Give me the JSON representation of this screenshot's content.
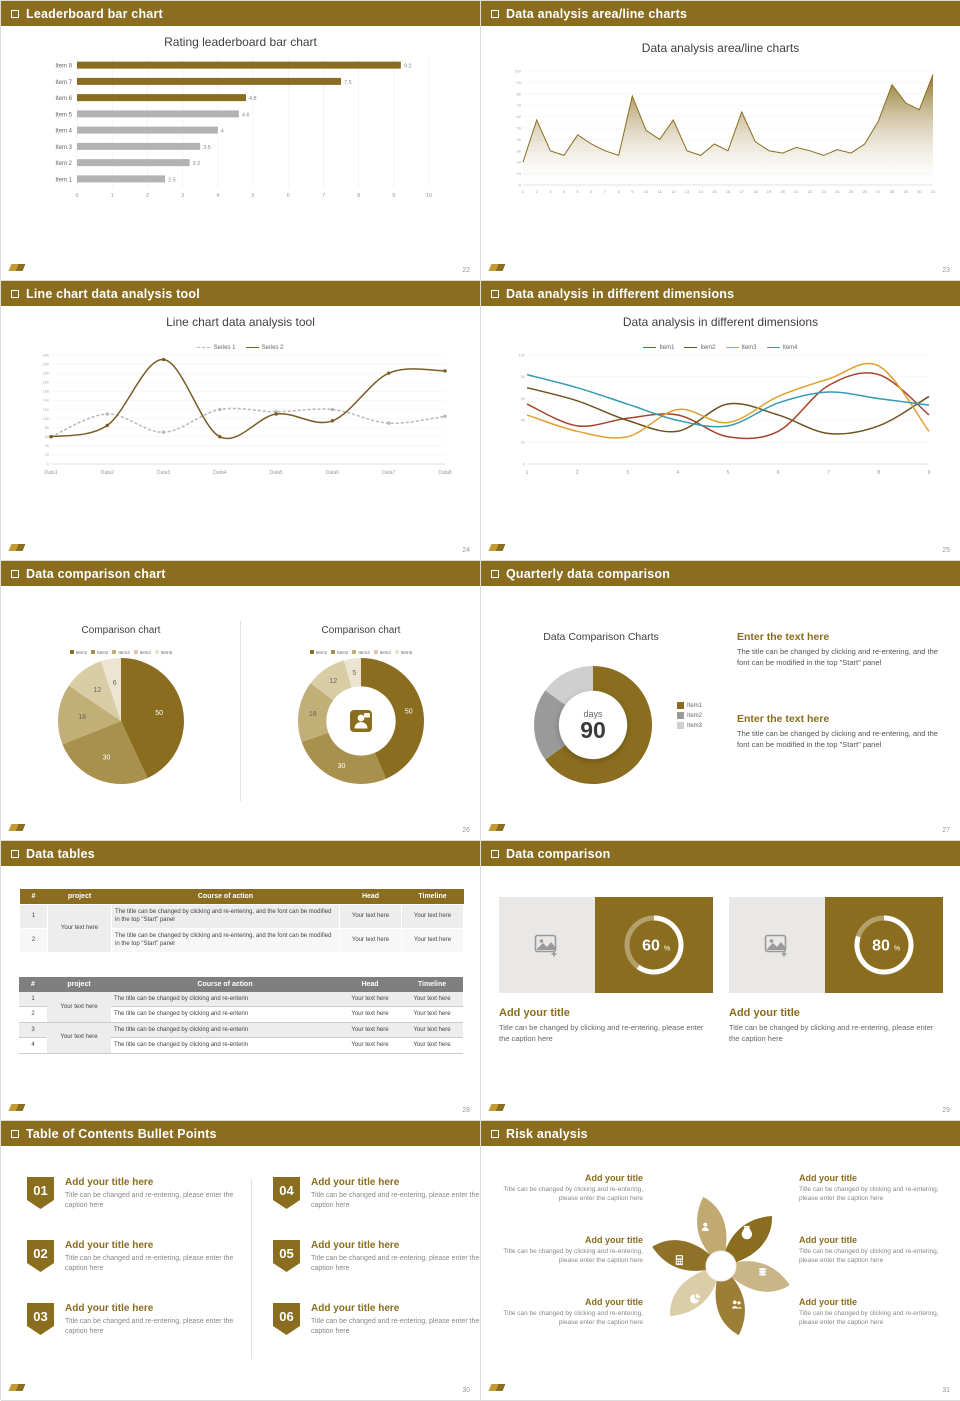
{
  "theme": {
    "gold": "#8a6d1e",
    "gold_light": "#c59a33",
    "gray_bar": "#b3b3b3",
    "header_text": "#ffffff"
  },
  "slides": [
    {
      "header": "Leaderboard bar chart",
      "page": "22",
      "title": "Rating leaderboard bar chart"
    },
    {
      "header": "Data analysis area/line charts",
      "page": "23",
      "title": "Data analysis area/line charts"
    },
    {
      "header": "Line chart data analysis tool",
      "page": "24",
      "title": "Line chart data analysis tool"
    },
    {
      "header": "Data analysis in different dimensions",
      "page": "25",
      "title": "Data analysis in different dimensions"
    },
    {
      "header": "Data comparison chart",
      "page": "26",
      "left_title": "Comparison chart",
      "right_title": "Comparison chart",
      "center_icon": "presenter-icon"
    },
    {
      "header": "Quarterly data comparison",
      "page": "27",
      "title": "Data Comparison Charts",
      "center_top": "days",
      "center_value": "90",
      "blocks": [
        {
          "title": "Enter the text here",
          "body": "The title can be changed by clicking and re-entering, and the font can be modified in the top \"Start\" panel"
        },
        {
          "title": "Enter the text here",
          "body": "The title can be changed by clicking and re-entering, and the font can be modified in the top \"Start\" panel"
        }
      ]
    },
    {
      "header": "Data tables",
      "page": "28",
      "table1": {
        "headers": [
          "#",
          "project",
          "Course of action",
          "Head",
          "Timeline"
        ],
        "project": "Your text here",
        "rows": [
          {
            "num": "1",
            "course": "The title can be changed by clicking and re-entering, and the font can be modified in the top \"Start\" panel",
            "head": "Your text here",
            "timeline": "Your text here"
          },
          {
            "num": "2",
            "course": "The title can be changed by clicking and re-entering, and the font can be modified in the top \"Start\" panel",
            "head": "Your text here",
            "timeline": "Your text here"
          }
        ]
      },
      "table2": {
        "headers": [
          "#",
          "project",
          "Course of action",
          "Head",
          "Timeline"
        ],
        "project": "Your text here",
        "rows": [
          {
            "num": "1",
            "course": "The title can be changed by clicking and re-enterin",
            "head": "Your text here",
            "timeline": "Your text here"
          },
          {
            "num": "2",
            "course": "The title can be changed by clicking and re-enterin",
            "head": "Your text here",
            "timeline": "Your text here"
          },
          {
            "num": "3",
            "course": "The title can be changed by clicking and re-enterin",
            "head": "Your text here",
            "timeline": "Your text here"
          },
          {
            "num": "4",
            "course": "The title can be changed by clicking and re-enterin",
            "head": "Your text here",
            "timeline": "Your text here"
          }
        ]
      }
    },
    {
      "header": "Data comparison",
      "page": "29",
      "cards": [
        {
          "title": "Add your title",
          "caption": "Title can be changed by clicking and re-entering, please enter the caption here"
        },
        {
          "title": "Add your title",
          "caption": "Title can be changed by clicking and re-entering, please enter the caption here"
        }
      ]
    },
    {
      "header": "Table of Contents Bullet Points",
      "page": "30",
      "items": [
        {
          "num": "01",
          "title": "Add your title here",
          "caption": "Title can be changed and re-entering, please enter the caption here"
        },
        {
          "num": "02",
          "title": "Add your title here",
          "caption": "Title can be changed and re-entering, please enter the caption here"
        },
        {
          "num": "03",
          "title": "Add your title here",
          "caption": "Title can be changed and re-entering, please enter the caption here"
        },
        {
          "num": "04",
          "title": "Add your title here",
          "caption": "Title can be changed and re-entering, please enter the caption here"
        },
        {
          "num": "05",
          "title": "Add your title here",
          "caption": "Title can be changed and re-entering, please enter the caption here"
        },
        {
          "num": "06",
          "title": "Add your title here",
          "caption": "Title can be changed and re-entering, please enter the caption here"
        }
      ]
    },
    {
      "header": "Risk analysis",
      "page": "31",
      "blocks": [
        {
          "title": "Add your title",
          "caption": "Title can be changed by clicking and re-entering, please enter the caption here"
        },
        {
          "title": "Add your title",
          "caption": "Title can be changed by clicking and re-entering, please enter the caption here"
        },
        {
          "title": "Add your title",
          "caption": "Title can be changed by clicking and re-entering, please enter the caption here"
        },
        {
          "title": "Add your title",
          "caption": "Title can be changed by clicking and re-entering, please enter the caption here"
        },
        {
          "title": "Add your title",
          "caption": "Title can be changed by clicking and re-entering, please enter the caption here"
        },
        {
          "title": "Add your title",
          "caption": "Title can be changed by clicking and re-entering, please enter the caption here"
        }
      ],
      "diagram": {
        "type": "pinwheel",
        "petal_colors": [
          "#8a6d1e",
          "#c9b585",
          "#9c7f35",
          "#dbcda8",
          "#8f7227",
          "#c1a972"
        ],
        "icons": [
          "moneybag-icon",
          "coins-icon",
          "people-icon",
          "pie-icon",
          "calculator-icon",
          "person-icon"
        ]
      }
    }
  ],
  "chart_data": [
    {
      "type": "bar",
      "orientation": "horizontal",
      "title": "Rating leaderboard bar chart",
      "categories": [
        "Item 8",
        "Item 7",
        "Item 6",
        "Item 5",
        "Item 4",
        "Item 3",
        "Item 2",
        "Item 1"
      ],
      "values": [
        9.2,
        7.5,
        4.8,
        4.6,
        4,
        3.5,
        3.2,
        2.5
      ],
      "bar_colors": [
        "#8a6d1e",
        "#8a6d1e",
        "#8a6d1e",
        "#b3b3b3",
        "#b3b3b3",
        "#b3b3b3",
        "#b3b3b3",
        "#b3b3b3"
      ],
      "xlim": [
        0,
        10
      ],
      "xticks": [
        0,
        1,
        2,
        3,
        4,
        5,
        6,
        7,
        8,
        9,
        10
      ]
    },
    {
      "type": "area",
      "title": "Data analysis area/line charts",
      "color": "#8a6d1e",
      "x": [
        1,
        2,
        3,
        4,
        5,
        6,
        7,
        8,
        9,
        10,
        11,
        12,
        13,
        14,
        15,
        16,
        17,
        18,
        19,
        20,
        21,
        22,
        23,
        24,
        25,
        26,
        27,
        28,
        29,
        30,
        31
      ],
      "values": [
        20,
        57,
        30,
        26,
        44,
        36,
        30,
        26,
        78,
        48,
        40,
        57,
        30,
        26,
        36,
        30,
        64,
        38,
        30,
        28,
        33,
        30,
        26,
        31,
        28,
        36,
        56,
        88,
        72,
        66,
        97
      ],
      "ylim": [
        0,
        100
      ],
      "yticks": [
        0,
        10,
        20,
        30,
        40,
        50,
        60,
        70,
        80,
        90,
        100
      ]
    },
    {
      "type": "line",
      "title": "Line chart data analysis tool",
      "markers": true,
      "categories": [
        "Data1",
        "Data2",
        "Data3",
        "Data4",
        "Data5",
        "Data6",
        "Data7",
        "Data8"
      ],
      "ylim": [
        0,
        240
      ],
      "ytick_step": 20,
      "series": [
        {
          "name": "Series 1",
          "color": "#b8b8b8",
          "dashed": true,
          "values": [
            60,
            110,
            70,
            120,
            115,
            120,
            90,
            105
          ]
        },
        {
          "name": "Series 2",
          "color": "#7a5b25",
          "dashed": false,
          "values": [
            60,
            85,
            230,
            60,
            110,
            95,
            200,
            205
          ]
        }
      ]
    },
    {
      "type": "line",
      "title": "Data analysis in different dimensions",
      "markers": false,
      "categories": [
        "1",
        "2",
        "3",
        "4",
        "5",
        "6",
        "7",
        "8",
        "9"
      ],
      "ylim": [
        0,
        100
      ],
      "ytick_step": 20,
      "series": [
        {
          "name": "Item1",
          "color": "#a8432c",
          "dashed": false,
          "values": [
            55,
            35,
            42,
            45,
            25,
            30,
            72,
            82,
            45
          ]
        },
        {
          "name": "Item2",
          "color": "#6b5420",
          "dashed": false,
          "values": [
            70,
            58,
            40,
            30,
            55,
            45,
            28,
            35,
            62
          ]
        },
        {
          "name": "Item3",
          "color": "#dfa132",
          "dashed": false,
          "values": [
            45,
            30,
            25,
            50,
            38,
            62,
            78,
            90,
            30
          ]
        },
        {
          "name": "Item4",
          "color": "#359bb0",
          "dashed": false,
          "values": [
            82,
            70,
            55,
            40,
            35,
            56,
            66,
            60,
            54
          ]
        }
      ]
    },
    {
      "type": "pie",
      "title": "Comparison chart",
      "labels": [
        "Item1",
        "Item2",
        "Item3",
        "Item4",
        "Item5"
      ],
      "values": [
        50,
        30,
        18,
        12,
        6
      ],
      "colors": [
        "#8a6d1e",
        "#a8904d",
        "#c2ae77",
        "#d9cda6",
        "#ece5d2"
      ]
    },
    {
      "type": "donut",
      "title": "Comparison chart",
      "inner": 0.55,
      "labels": [
        "Item1",
        "Item2",
        "Item3",
        "Item4",
        "Item5"
      ],
      "values": [
        50,
        30,
        18,
        12,
        5
      ],
      "colors": [
        "#8a6d1e",
        "#a8904d",
        "#c2ae77",
        "#d9cda6",
        "#ece5d2"
      ]
    },
    {
      "type": "donut",
      "title": "Data Comparison Charts",
      "inner": 0.58,
      "show_labels": false,
      "labels": [
        "Item1",
        "Item2",
        "Item3"
      ],
      "values": [
        65,
        20,
        15
      ],
      "colors": [
        "#8a6d1e",
        "#9a9a9a",
        "#cfcfcf"
      ],
      "center_label": "90 days"
    },
    {
      "type": "progress",
      "value": 60,
      "unit": "%"
    },
    {
      "type": "progress",
      "value": 80,
      "unit": "%"
    }
  ]
}
